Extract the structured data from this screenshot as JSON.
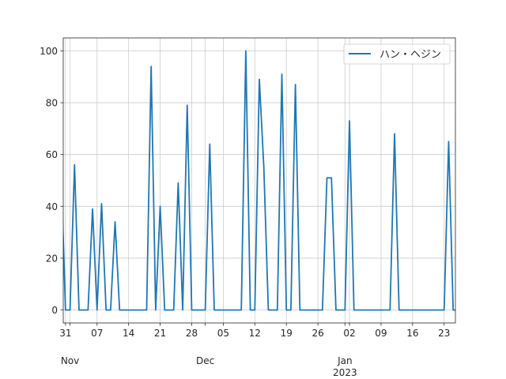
{
  "chart_data": {
    "type": "line",
    "title": "",
    "xlabel": "",
    "ylabel": "",
    "x_start": "2022-10-31",
    "x_end": "2023-01-25",
    "ylim": [
      -5,
      105
    ],
    "grid": true,
    "legend_placement": "top-right",
    "line_color": "#1f77b4",
    "series": [
      {
        "name": "ハン・ヘジン",
        "points": [
          [
            "2022-10-30",
            55
          ],
          [
            "2022-10-31",
            0
          ],
          [
            "2022-11-01",
            0
          ],
          [
            "2022-11-02",
            56
          ],
          [
            "2022-11-03",
            0
          ],
          [
            "2022-11-04",
            0
          ],
          [
            "2022-11-05",
            0
          ],
          [
            "2022-11-06",
            39
          ],
          [
            "2022-11-07",
            0
          ],
          [
            "2022-11-08",
            41
          ],
          [
            "2022-11-09",
            0
          ],
          [
            "2022-11-10",
            0
          ],
          [
            "2022-11-11",
            34
          ],
          [
            "2022-11-12",
            0
          ],
          [
            "2022-11-13",
            0
          ],
          [
            "2022-11-14",
            0
          ],
          [
            "2022-11-15",
            0
          ],
          [
            "2022-11-16",
            0
          ],
          [
            "2022-11-17",
            0
          ],
          [
            "2022-11-18",
            0
          ],
          [
            "2022-11-19",
            94
          ],
          [
            "2022-11-20",
            0
          ],
          [
            "2022-11-21",
            40
          ],
          [
            "2022-11-22",
            0
          ],
          [
            "2022-11-23",
            0
          ],
          [
            "2022-11-24",
            0
          ],
          [
            "2022-11-25",
            49
          ],
          [
            "2022-11-26",
            0
          ],
          [
            "2022-11-27",
            79
          ],
          [
            "2022-11-28",
            0
          ],
          [
            "2022-11-29",
            0
          ],
          [
            "2022-11-30",
            0
          ],
          [
            "2022-12-01",
            0
          ],
          [
            "2022-12-02",
            64
          ],
          [
            "2022-12-03",
            0
          ],
          [
            "2022-12-04",
            0
          ],
          [
            "2022-12-05",
            0
          ],
          [
            "2022-12-06",
            0
          ],
          [
            "2022-12-07",
            0
          ],
          [
            "2022-12-08",
            0
          ],
          [
            "2022-12-09",
            0
          ],
          [
            "2022-12-10",
            100
          ],
          [
            "2022-12-11",
            0
          ],
          [
            "2022-12-12",
            0
          ],
          [
            "2022-12-13",
            89
          ],
          [
            "2022-12-14",
            55
          ],
          [
            "2022-12-15",
            0
          ],
          [
            "2022-12-16",
            0
          ],
          [
            "2022-12-17",
            0
          ],
          [
            "2022-12-18",
            91
          ],
          [
            "2022-12-19",
            0
          ],
          [
            "2022-12-20",
            0
          ],
          [
            "2022-12-21",
            87
          ],
          [
            "2022-12-22",
            0
          ],
          [
            "2022-12-23",
            0
          ],
          [
            "2022-12-24",
            0
          ],
          [
            "2022-12-25",
            0
          ],
          [
            "2022-12-26",
            0
          ],
          [
            "2022-12-27",
            0
          ],
          [
            "2022-12-28",
            51
          ],
          [
            "2022-12-29",
            51
          ],
          [
            "2022-12-30",
            0
          ],
          [
            "2022-12-31",
            0
          ],
          [
            "2023-01-01",
            0
          ],
          [
            "2023-01-02",
            73
          ],
          [
            "2023-01-03",
            0
          ],
          [
            "2023-01-04",
            0
          ],
          [
            "2023-01-05",
            0
          ],
          [
            "2023-01-06",
            0
          ],
          [
            "2023-01-07",
            0
          ],
          [
            "2023-01-08",
            0
          ],
          [
            "2023-01-09",
            0
          ],
          [
            "2023-01-10",
            0
          ],
          [
            "2023-01-11",
            0
          ],
          [
            "2023-01-12",
            68
          ],
          [
            "2023-01-13",
            0
          ],
          [
            "2023-01-14",
            0
          ],
          [
            "2023-01-15",
            0
          ],
          [
            "2023-01-16",
            0
          ],
          [
            "2023-01-17",
            0
          ],
          [
            "2023-01-18",
            0
          ],
          [
            "2023-01-19",
            0
          ],
          [
            "2023-01-20",
            0
          ],
          [
            "2023-01-21",
            0
          ],
          [
            "2023-01-22",
            0
          ],
          [
            "2023-01-23",
            0
          ],
          [
            "2023-01-24",
            65
          ],
          [
            "2023-01-25",
            0
          ],
          [
            "2023-01-26",
            0
          ]
        ]
      }
    ],
    "y_ticks": [
      0,
      20,
      40,
      60,
      80,
      100
    ],
    "x_minor_ticks": [
      {
        "date": "2022-10-31",
        "label": "31"
      },
      {
        "date": "2022-11-07",
        "label": "07"
      },
      {
        "date": "2022-11-14",
        "label": "14"
      },
      {
        "date": "2022-11-21",
        "label": "21"
      },
      {
        "date": "2022-11-28",
        "label": "28"
      },
      {
        "date": "2022-12-05",
        "label": "05"
      },
      {
        "date": "2022-12-12",
        "label": "12"
      },
      {
        "date": "2022-12-19",
        "label": "19"
      },
      {
        "date": "2022-12-26",
        "label": "26"
      },
      {
        "date": "2023-01-02",
        "label": "02"
      },
      {
        "date": "2023-01-09",
        "label": "09"
      },
      {
        "date": "2023-01-16",
        "label": "16"
      },
      {
        "date": "2023-01-23",
        "label": "23"
      }
    ],
    "x_major_ticks": [
      {
        "date": "2022-11-01",
        "label": "Nov",
        "sublabel": ""
      },
      {
        "date": "2022-12-01",
        "label": "Dec",
        "sublabel": ""
      },
      {
        "date": "2023-01-01",
        "label": "Jan",
        "sublabel": "2023"
      }
    ]
  }
}
